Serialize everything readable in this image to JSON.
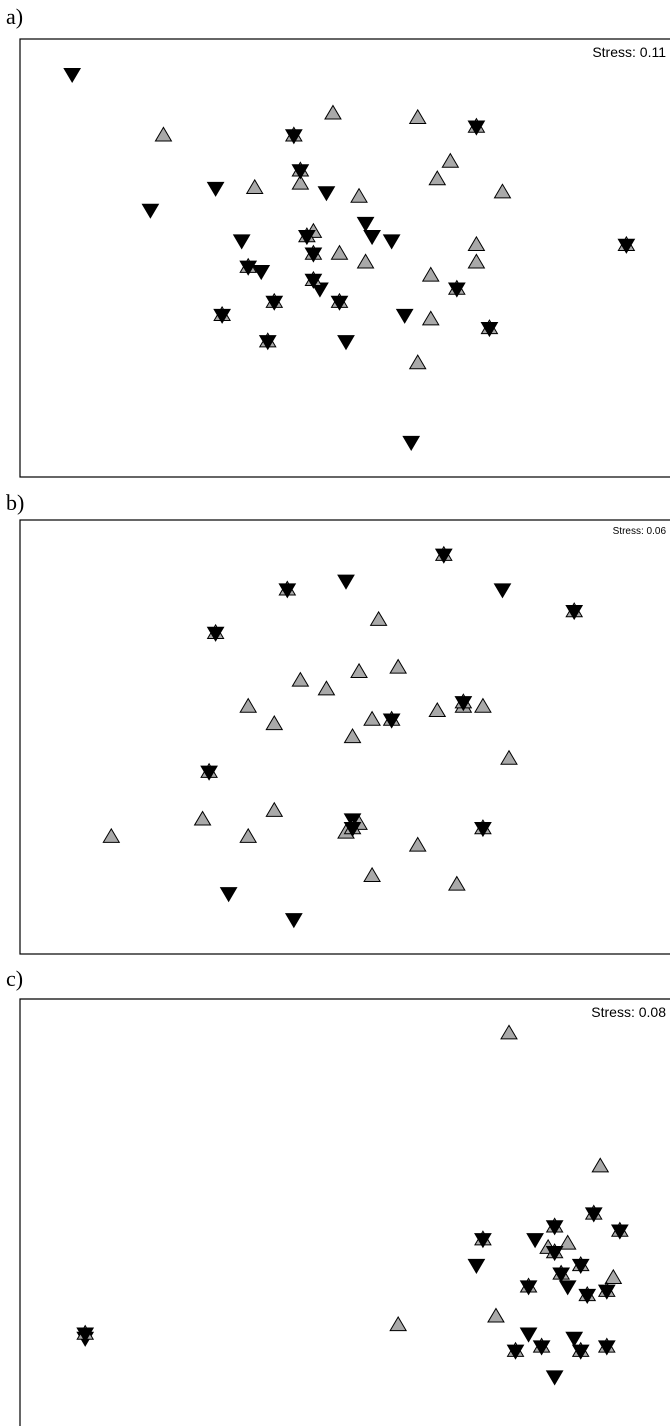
{
  "chart_data": [
    {
      "type": "scatter",
      "panel_label": "a)",
      "stress_label": "Stress: 0.11",
      "xlim": [
        0,
        100
      ],
      "ylim": [
        0,
        100
      ],
      "grid": false,
      "series": [
        {
          "marker": "triangle-up",
          "color": "#a9a9a9",
          "points": [
            [
              22,
              78
            ],
            [
              48,
              83
            ],
            [
              61,
              82
            ],
            [
              66,
              72
            ],
            [
              64,
              68
            ],
            [
              74,
              65
            ],
            [
              43,
              67
            ],
            [
              36,
              66
            ],
            [
              52,
              64
            ],
            [
              45,
              56
            ],
            [
              49,
              51
            ],
            [
              53,
              49
            ],
            [
              63,
              46
            ],
            [
              70,
              53
            ],
            [
              63,
              36
            ],
            [
              61,
              26
            ],
            [
              70,
              49
            ]
          ]
        },
        {
          "marker": "triangle-down",
          "color": "#000000",
          "points": [
            [
              8,
              92
            ],
            [
              20,
              61
            ],
            [
              30,
              66
            ],
            [
              34,
              54
            ],
            [
              47,
              65
            ],
            [
              53,
              58
            ],
            [
              54,
              55
            ],
            [
              57,
              54
            ],
            [
              37,
              47
            ],
            [
              50,
              31
            ],
            [
              60,
              8
            ],
            [
              59,
              37
            ],
            [
              46,
              43
            ]
          ]
        },
        {
          "marker": "hourglass",
          "color": "#000000",
          "points": [
            [
              42,
              78
            ],
            [
              43,
              70
            ],
            [
              70,
              80
            ],
            [
              93,
              53
            ],
            [
              44,
              55
            ],
            [
              45,
              51
            ],
            [
              35,
              48
            ],
            [
              39,
              40
            ],
            [
              31,
              37
            ],
            [
              49,
              40
            ],
            [
              45,
              45
            ],
            [
              67,
              43
            ],
            [
              72,
              34
            ],
            [
              38,
              31
            ]
          ]
        }
      ]
    },
    {
      "type": "scatter",
      "panel_label": "b)",
      "stress_label": "Stress: 0.06",
      "xlim": [
        0,
        100
      ],
      "ylim": [
        0,
        100
      ],
      "grid": false,
      "series": [
        {
          "marker": "triangle-up",
          "color": "#a9a9a9",
          "points": [
            [
              55,
              77
            ],
            [
              43,
              63
            ],
            [
              35,
              57
            ],
            [
              39,
              53
            ],
            [
              47,
              61
            ],
            [
              52,
              65
            ],
            [
              58,
              66
            ],
            [
              54,
              54
            ],
            [
              64,
              56
            ],
            [
              51,
              50
            ],
            [
              75,
              45
            ],
            [
              39,
              33
            ],
            [
              28,
              31
            ],
            [
              14,
              27
            ],
            [
              35,
              27
            ],
            [
              52,
              30
            ],
            [
              50,
              28
            ],
            [
              61,
              25
            ],
            [
              54,
              18
            ],
            [
              67,
              16
            ],
            [
              71,
              57
            ],
            [
              68,
              57
            ]
          ]
        },
        {
          "marker": "triangle-down",
          "color": "#000000",
          "points": [
            [
              50,
              86
            ],
            [
              74,
              84
            ],
            [
              51,
              31
            ],
            [
              32,
              14
            ],
            [
              42,
              8
            ]
          ]
        },
        {
          "marker": "hourglass",
          "color": "#000000",
          "points": [
            [
              65,
              92
            ],
            [
              41,
              84
            ],
            [
              85,
              79
            ],
            [
              30,
              74
            ],
            [
              68,
              58
            ],
            [
              57,
              54
            ],
            [
              29,
              42
            ],
            [
              71,
              29
            ],
            [
              51,
              29
            ]
          ]
        }
      ]
    },
    {
      "type": "scatter",
      "panel_label": "c)",
      "stress_label": "Stress: 0.08",
      "xlim": [
        0,
        100
      ],
      "ylim": [
        0,
        100
      ],
      "grid": false,
      "series": [
        {
          "marker": "triangle-up",
          "color": "#a9a9a9",
          "points": [
            [
              75,
              92
            ],
            [
              89,
              61
            ],
            [
              84,
              43
            ],
            [
              81,
              42
            ],
            [
              91,
              35
            ],
            [
              73,
              26
            ],
            [
              58,
              24
            ]
          ]
        },
        {
          "marker": "triangle-down",
          "color": "#000000",
          "points": [
            [
              79,
              44
            ],
            [
              70,
              38
            ],
            [
              84,
              33
            ],
            [
              78,
              22
            ],
            [
              85,
              21
            ],
            [
              82,
              12
            ],
            [
              10,
              21
            ]
          ]
        },
        {
          "marker": "hourglass",
          "color": "#000000",
          "points": [
            [
              88,
              50
            ],
            [
              82,
              47
            ],
            [
              92,
              46
            ],
            [
              71,
              44
            ],
            [
              82,
              41
            ],
            [
              86,
              38
            ],
            [
              83,
              36
            ],
            [
              78,
              33
            ],
            [
              90,
              32
            ],
            [
              87,
              31
            ],
            [
              80,
              19
            ],
            [
              76,
              18
            ],
            [
              86,
              18
            ],
            [
              90,
              19
            ],
            [
              10,
              22
            ]
          ]
        }
      ]
    }
  ]
}
